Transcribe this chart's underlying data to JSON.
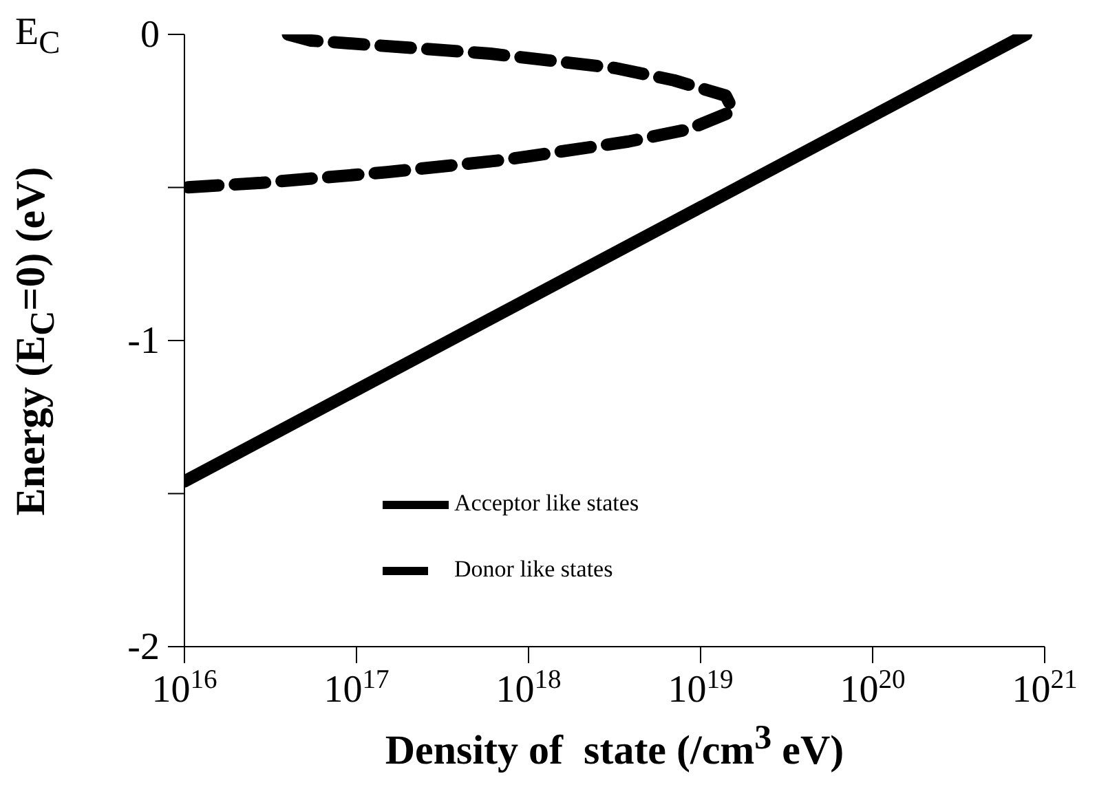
{
  "chart_data": {
    "type": "line",
    "xlabel": "Density of  state (/cm$^{3}$ eV)",
    "ylabel": "Energy (E$_{C}$=0) (eV)",
    "annotations": [
      "E$_{C}$"
    ],
    "log": "x",
    "xlim": [
      1e+16,
      1e+21
    ],
    "xticks": [
      {
        "value": 1e+16,
        "label": "10$^{16}$"
      },
      {
        "value": 1e+17,
        "label": "10$^{17}$"
      },
      {
        "value": 1e+18,
        "label": "10$^{18}$"
      },
      {
        "value": 1e+19,
        "label": "10$^{19}$"
      },
      {
        "value": 1e+20,
        "label": "10$^{20}$"
      },
      {
        "value": 1e+21,
        "label": "10$^{21}$"
      }
    ],
    "ylim": [
      -2,
      0
    ],
    "yticks": [
      -2,
      {
        "value": -1.5,
        "label": null
      },
      -1,
      {
        "value": -0.5,
        "label": null
      },
      0
    ],
    "grid": false,
    "legend": "bottom",
    "marker": "none",
    "series": [
      {
        "name": "Acceptor like states",
        "color": "#000000",
        "line_style": "solid",
        "x": [
          1e+16,
          7.8e+20
        ],
        "values": [
          -1.46,
          0
        ]
      },
      {
        "name": "Donor like states",
        "color": "#000000",
        "line_style": "dashed",
        "x": [
          4e+16,
          5.4e+16,
          6e+17,
          3.2e+18,
          7e+18,
          1.4e+19,
          1.55e+19,
          8.5e+18,
          3.8e+18,
          7.2e+17,
          1.5e+17,
          2.8e+16,
          1e+16
        ],
        "values": [
          0,
          -0.02,
          -0.063,
          -0.11,
          -0.15,
          -0.2,
          -0.25,
          -0.31,
          -0.35,
          -0.41,
          -0.45,
          -0.485,
          -0.5
        ]
      }
    ]
  }
}
